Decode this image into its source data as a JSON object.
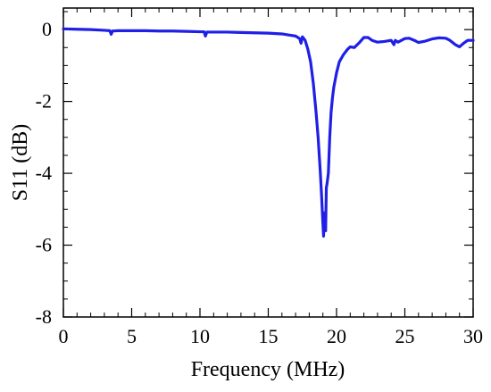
{
  "chart_data": {
    "type": "line",
    "title": "",
    "xlabel": "Frequency (MHz)",
    "ylabel": "S11 (dB)",
    "xlim": [
      0,
      30
    ],
    "ylim": [
      -8,
      0.6
    ],
    "x_ticks": [
      0,
      5,
      10,
      15,
      20,
      25,
      30
    ],
    "y_ticks": [
      0,
      -2,
      -4,
      -6,
      -8
    ],
    "x_tick_labels": [
      "0",
      "5",
      "10",
      "15",
      "20",
      "25",
      "30"
    ],
    "y_tick_labels": [
      "0",
      "-2",
      "-4",
      "-6",
      "-8"
    ],
    "grid": false,
    "legend": "none",
    "series": [
      {
        "color": "#1f1fe6",
        "x": [
          0,
          1,
          2,
          3,
          3.4,
          3.5,
          3.6,
          4,
          5,
          6,
          7,
          8,
          9,
          10,
          10.3,
          10.4,
          10.5,
          11,
          12,
          13,
          14,
          15,
          16,
          16.5,
          17,
          17.3,
          17.4,
          17.5,
          17.7,
          17.9,
          18.1,
          18.3,
          18.5,
          18.65,
          18.8,
          18.9,
          19.0,
          19.05,
          19.1,
          19.2,
          19.25,
          19.3,
          19.4,
          19.5,
          19.6,
          19.7,
          19.8,
          20.0,
          20.2,
          20.5,
          20.8,
          21.0,
          21.3,
          21.7,
          22.0,
          22.3,
          22.6,
          23.0,
          23.5,
          24.0,
          24.2,
          24.3,
          24.5,
          25.0,
          25.3,
          25.7,
          26.0,
          26.5,
          27.0,
          27.5,
          28.0,
          28.3,
          28.7,
          29.0,
          29.3,
          29.6,
          30.0
        ],
        "y": [
          0.02,
          0.01,
          0.0,
          -0.02,
          -0.03,
          -0.13,
          -0.04,
          -0.03,
          -0.03,
          -0.03,
          -0.04,
          -0.04,
          -0.05,
          -0.06,
          -0.06,
          -0.18,
          -0.07,
          -0.07,
          -0.07,
          -0.08,
          -0.09,
          -0.1,
          -0.12,
          -0.15,
          -0.18,
          -0.25,
          -0.38,
          -0.2,
          -0.3,
          -0.55,
          -0.9,
          -1.5,
          -2.3,
          -3.0,
          -3.9,
          -4.6,
          -5.4,
          -5.75,
          -5.1,
          -5.6,
          -4.4,
          -4.3,
          -4.0,
          -3.0,
          -2.3,
          -1.9,
          -1.6,
          -1.2,
          -0.9,
          -0.7,
          -0.55,
          -0.48,
          -0.5,
          -0.35,
          -0.22,
          -0.22,
          -0.3,
          -0.35,
          -0.33,
          -0.3,
          -0.42,
          -0.3,
          -0.35,
          -0.25,
          -0.24,
          -0.3,
          -0.36,
          -0.32,
          -0.26,
          -0.23,
          -0.24,
          -0.3,
          -0.42,
          -0.48,
          -0.38,
          -0.3,
          -0.3
        ]
      }
    ]
  }
}
